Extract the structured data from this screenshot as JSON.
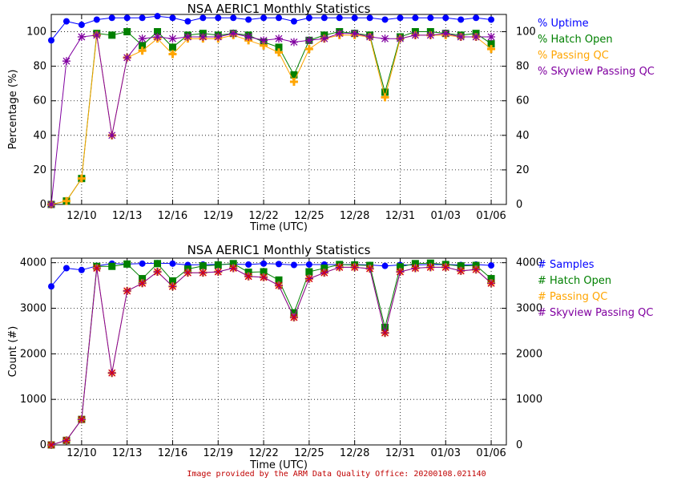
{
  "footer": "Image provided by the ARM Data Quality Office: 20200108.021140",
  "x_ticks": [
    "12/10",
    "12/13",
    "12/16",
    "12/19",
    "12/22",
    "12/25",
    "12/28",
    "12/31",
    "01/03",
    "01/06"
  ],
  "chart_data": [
    {
      "type": "line",
      "title": "NSA AERIC1 Monthly Statistics",
      "xlabel": "Time (UTC)",
      "ylabel": "Percentage (%)",
      "ylim": [
        0,
        110
      ],
      "yticks": [
        0,
        20,
        40,
        60,
        80,
        100
      ],
      "xlim": [
        8,
        38
      ],
      "grid": true,
      "legend_position": "right",
      "x": [
        8,
        9,
        10,
        11,
        12,
        13,
        14,
        15,
        16,
        17,
        18,
        19,
        20,
        21,
        22,
        23,
        24,
        25,
        26,
        27,
        28,
        29,
        30,
        31,
        32,
        33,
        34,
        35,
        36,
        37
      ],
      "series": [
        {
          "name": "% Uptime",
          "color": "#0000ff",
          "marker": "circle",
          "values": [
            95,
            106,
            104,
            107,
            108,
            108,
            108,
            109,
            108,
            106,
            108,
            108,
            108,
            107,
            108,
            108,
            106,
            108,
            108,
            108,
            108,
            108,
            107,
            108,
            108,
            108,
            108,
            107,
            108,
            107
          ]
        },
        {
          "name": "% Hatch Open",
          "color": "#008000",
          "marker": "square",
          "values": [
            0,
            2,
            15,
            99,
            98,
            100,
            92,
            100,
            91,
            98,
            99,
            98,
            99,
            98,
            94,
            91,
            75,
            95,
            98,
            100,
            99,
            98,
            65,
            97,
            100,
            100,
            99,
            98,
            99,
            93
          ]
        },
        {
          "name": "% Passing QC",
          "color": "#ffa500",
          "marker": "plus",
          "values": [
            0,
            2,
            15,
            98,
            40,
            85,
            89,
            96,
            87,
            96,
            96,
            96,
            98,
            95,
            92,
            88,
            71,
            90,
            96,
            98,
            98,
            97,
            62,
            96,
            98,
            98,
            98,
            97,
            97,
            90
          ]
        },
        {
          "name": "% Skyview Passing QC",
          "color": "#8000a0",
          "marker": "star",
          "values": [
            0,
            83,
            97,
            98,
            40,
            85,
            96,
            97,
            96,
            97,
            97,
            97,
            99,
            97,
            95,
            96,
            94,
            95,
            96,
            99,
            99,
            97,
            96,
            96,
            98,
            98,
            99,
            97,
            97,
            97
          ]
        }
      ]
    },
    {
      "type": "line",
      "title": "NSA AERIC1 Monthly Statistics",
      "xlabel": "Time (UTC)",
      "ylabel": "Count (#)",
      "ylim": [
        0,
        4100
      ],
      "yticks": [
        0,
        1000,
        2000,
        3000,
        4000
      ],
      "xlim": [
        8,
        38
      ],
      "grid": true,
      "legend_position": "right",
      "x": [
        8,
        9,
        10,
        11,
        12,
        13,
        14,
        15,
        16,
        17,
        18,
        19,
        20,
        21,
        22,
        23,
        24,
        25,
        26,
        27,
        28,
        29,
        30,
        31,
        32,
        33,
        34,
        35,
        36,
        37
      ],
      "series": [
        {
          "name": "# Samples",
          "color": "#0000ff",
          "marker": "circle",
          "values": [
            3480,
            3880,
            3840,
            3930,
            3980,
            3970,
            3980,
            3990,
            3980,
            3950,
            3960,
            3960,
            3970,
            3960,
            3980,
            3970,
            3950,
            3960,
            3960,
            3960,
            3960,
            3950,
            3930,
            3950,
            3950,
            3960,
            3960,
            3950,
            3960,
            3940
          ]
        },
        {
          "name": "# Hatch Open",
          "color": "#008000",
          "marker": "square",
          "values": [
            0,
            100,
            560,
            3920,
            3920,
            3970,
            3650,
            3980,
            3600,
            3860,
            3930,
            3950,
            3980,
            3790,
            3800,
            3620,
            2900,
            3800,
            3880,
            3960,
            3950,
            3940,
            2580,
            3910,
            3980,
            3990,
            3960,
            3930,
            3940,
            3650
          ]
        },
        {
          "name": "# Passing QC",
          "color": "#ffa500",
          "marker": "plus",
          "values": [
            0,
            100,
            560,
            3880,
            1580,
            3380,
            3550,
            3800,
            3480,
            3780,
            3780,
            3800,
            3880,
            3700,
            3680,
            3500,
            2800,
            3650,
            3780,
            3900,
            3900,
            3870,
            2460,
            3800,
            3880,
            3900,
            3900,
            3820,
            3850,
            3550
          ]
        },
        {
          "name": "# Skyview Passing QC",
          "color": "#8000a0",
          "marker": "star",
          "values": [
            0,
            100,
            560,
            3880,
            1580,
            3380,
            3550,
            3800,
            3480,
            3780,
            3780,
            3800,
            3880,
            3700,
            3680,
            3500,
            2800,
            3650,
            3780,
            3900,
            3900,
            3870,
            2460,
            3800,
            3880,
            3900,
            3900,
            3820,
            3850,
            3550
          ]
        }
      ]
    }
  ]
}
